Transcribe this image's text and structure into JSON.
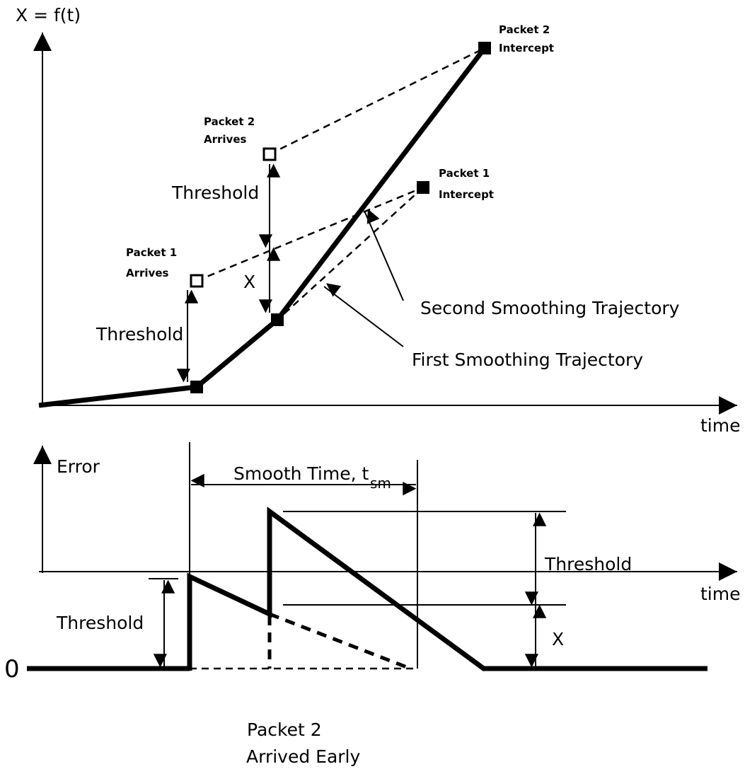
{
  "top_panel": {
    "y_axis_label": "X = f(t)",
    "x_axis_label": "time",
    "packet_2_intercept": [
      "Packet 2",
      "Intercept"
    ],
    "packet_2_arrives": [
      "Packet 2",
      "Arrives"
    ],
    "packet_1_intercept": [
      "Packet 1",
      "Intercept"
    ],
    "packet_1_arrives": [
      "Packet 1",
      "Arrives"
    ],
    "threshold_upper": "Threshold",
    "threshold_lower": "Threshold",
    "x_label": "X",
    "second_trajectory": "Second Smoothing Trajectory",
    "first_trajectory": "First Smoothing Trajectory"
  },
  "bottom_panel": {
    "y_axis_label": "Error",
    "x_axis_label": "time",
    "zero_label": "0",
    "smooth_time": "Smooth Time, t",
    "smooth_time_subscript": "sm",
    "threshold_right": "Threshold",
    "threshold_left": "Threshold",
    "x_label": "X",
    "packet_2_arrived_early": [
      "Packet 2",
      "Arrived Early"
    ]
  }
}
